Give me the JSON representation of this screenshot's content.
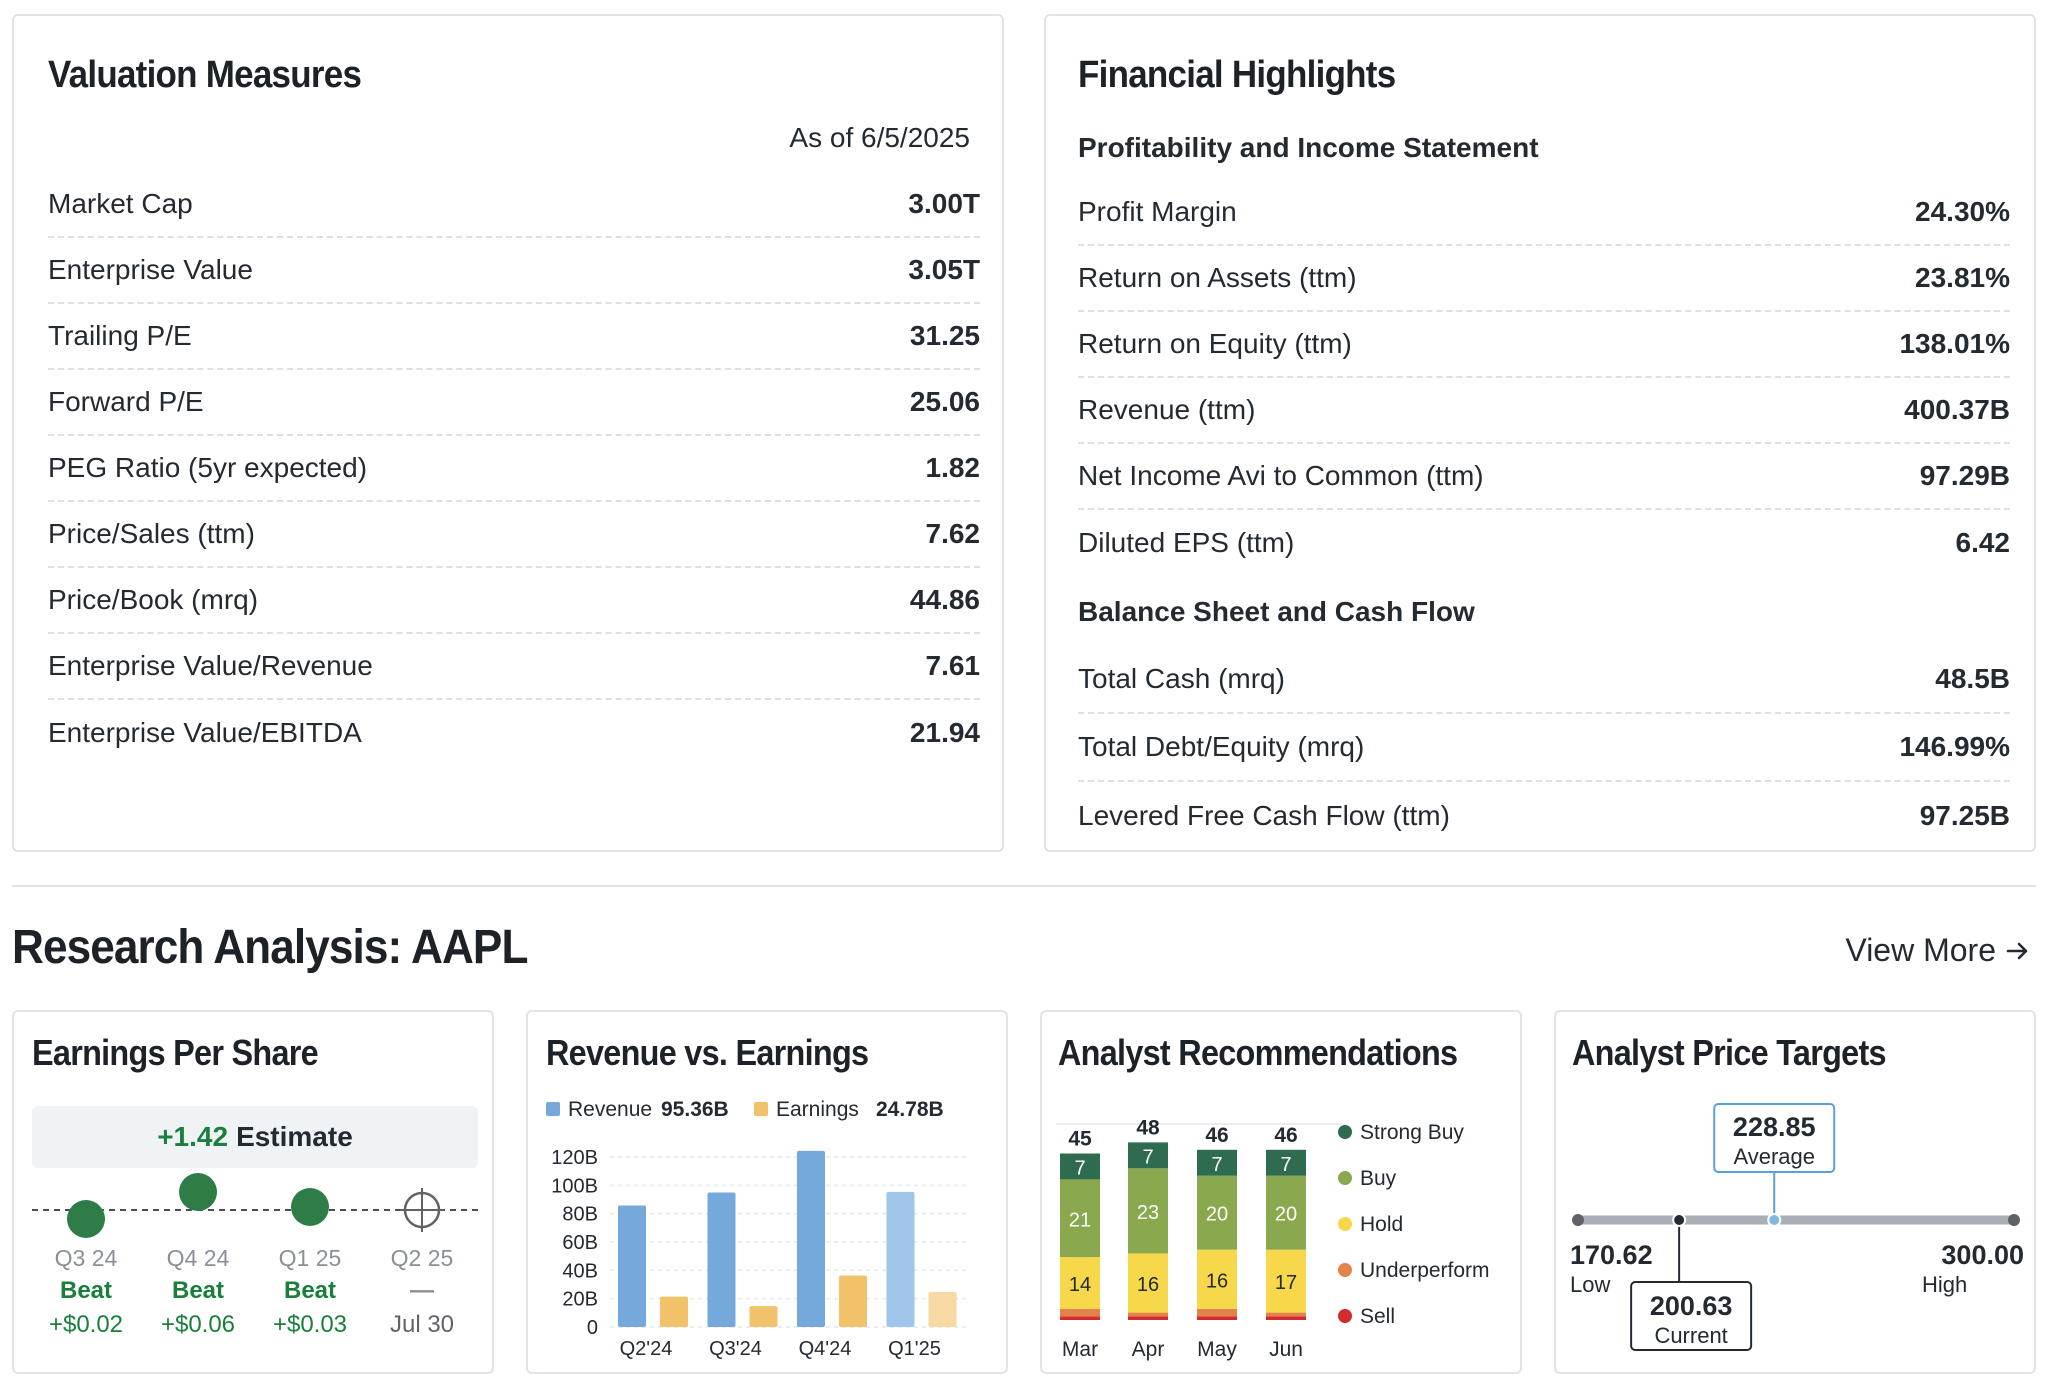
{
  "valuation": {
    "title": "Valuation Measures",
    "as_of": "As of 6/5/2025",
    "rows": [
      {
        "label": "Market Cap",
        "value": "3.00T"
      },
      {
        "label": "Enterprise Value",
        "value": "3.05T"
      },
      {
        "label": "Trailing P/E",
        "value": "31.25"
      },
      {
        "label": "Forward P/E",
        "value": "25.06"
      },
      {
        "label": "PEG Ratio (5yr expected)",
        "value": "1.82"
      },
      {
        "label": "Price/Sales (ttm)",
        "value": "7.62"
      },
      {
        "label": "Price/Book (mrq)",
        "value": "44.86"
      },
      {
        "label": "Enterprise Value/Revenue",
        "value": "7.61"
      },
      {
        "label": "Enterprise Value/EBITDA",
        "value": "21.94"
      }
    ]
  },
  "financial": {
    "title": "Financial Highlights",
    "section1": "Profitability and Income Statement",
    "rows1": [
      {
        "label": "Profit Margin",
        "value": "24.30%"
      },
      {
        "label": "Return on Assets (ttm)",
        "value": "23.81%"
      },
      {
        "label": "Return on Equity (ttm)",
        "value": "138.01%"
      },
      {
        "label": "Revenue (ttm)",
        "value": "400.37B"
      },
      {
        "label": "Net Income Avi to Common (ttm)",
        "value": "97.29B"
      },
      {
        "label": "Diluted EPS (ttm)",
        "value": "6.42"
      }
    ],
    "section2": "Balance Sheet and Cash Flow",
    "rows2": [
      {
        "label": "Total Cash (mrq)",
        "value": "48.5B"
      },
      {
        "label": "Total Debt/Equity (mrq)",
        "value": "146.99%"
      },
      {
        "label": "Levered Free Cash Flow (ttm)",
        "value": "97.25B"
      }
    ]
  },
  "research": {
    "title": "Research Analysis: AAPL",
    "view_more": "View More",
    "view_more_icon": "arrow-right-icon"
  },
  "eps": {
    "title": "Earnings Per Share",
    "estimate_value": "+1.42",
    "estimate_label": "Estimate",
    "quarters": [
      {
        "label": "Q3 24",
        "status": "Beat",
        "diff": "+$0.02",
        "type": "beat",
        "offset": -0.3
      },
      {
        "label": "Q4 24",
        "status": "Beat",
        "diff": "+$0.06",
        "type": "beat",
        "offset": 0.6
      },
      {
        "label": "Q1 25",
        "status": "Beat",
        "diff": "+$0.03",
        "type": "beat",
        "offset": 0.1
      },
      {
        "label": "Q2 25",
        "status": "—",
        "diff": "Jul 30",
        "type": "upcoming",
        "offset": 0
      }
    ]
  },
  "revenue_earnings": {
    "title": "Revenue vs. Earnings",
    "legend": [
      {
        "name": "Revenue",
        "value": "95.36B",
        "color": "#75a9dc"
      },
      {
        "name": "Earnings",
        "value": "24.78B",
        "color": "#f2c26b"
      }
    ],
    "chart_data": {
      "type": "bar",
      "categories": [
        "Q2'24",
        "Q3'24",
        "Q4'24",
        "Q1'25"
      ],
      "series": [
        {
          "name": "Revenue",
          "values": [
            85.78,
            94.93,
            124.3,
            95.36
          ]
        },
        {
          "name": "Earnings",
          "values": [
            21.45,
            14.74,
            36.33,
            24.78
          ]
        }
      ],
      "ylim": [
        0,
        120
      ],
      "yticks": [
        "0",
        "20B",
        "40B",
        "60B",
        "80B",
        "100B",
        "120B"
      ],
      "grid": true
    }
  },
  "analyst_rec": {
    "title": "Analyst Recommendations",
    "legend": [
      {
        "name": "Strong Buy",
        "color": "#2f6b4f"
      },
      {
        "name": "Buy",
        "color": "#8aa94f"
      },
      {
        "name": "Hold",
        "color": "#f7d84a"
      },
      {
        "name": "Underperform",
        "color": "#e4824b"
      },
      {
        "name": "Sell",
        "color": "#d42c2c"
      }
    ],
    "chart_data": {
      "type": "bar",
      "stacked": true,
      "categories": [
        "Mar",
        "Apr",
        "May",
        "Jun"
      ],
      "totals": [
        45,
        48,
        46,
        46
      ],
      "series": [
        {
          "name": "Strong Buy",
          "values": [
            7,
            7,
            7,
            7
          ]
        },
        {
          "name": "Buy",
          "values": [
            21,
            23,
            20,
            20
          ]
        },
        {
          "name": "Hold",
          "values": [
            14,
            16,
            16,
            17
          ]
        },
        {
          "name": "Underperform",
          "values": [
            2,
            1,
            2,
            1
          ]
        },
        {
          "name": "Sell",
          "values": [
            1,
            1,
            1,
            1
          ]
        }
      ]
    }
  },
  "price_targets": {
    "title": "Analyst Price Targets",
    "low": {
      "value": "170.62",
      "label": "Low",
      "num": 170.62
    },
    "high": {
      "value": "300.00",
      "label": "High",
      "num": 300.0
    },
    "average": {
      "value": "228.85",
      "label": "Average",
      "num": 228.85
    },
    "current": {
      "value": "200.63",
      "label": "Current",
      "num": 200.63
    }
  }
}
